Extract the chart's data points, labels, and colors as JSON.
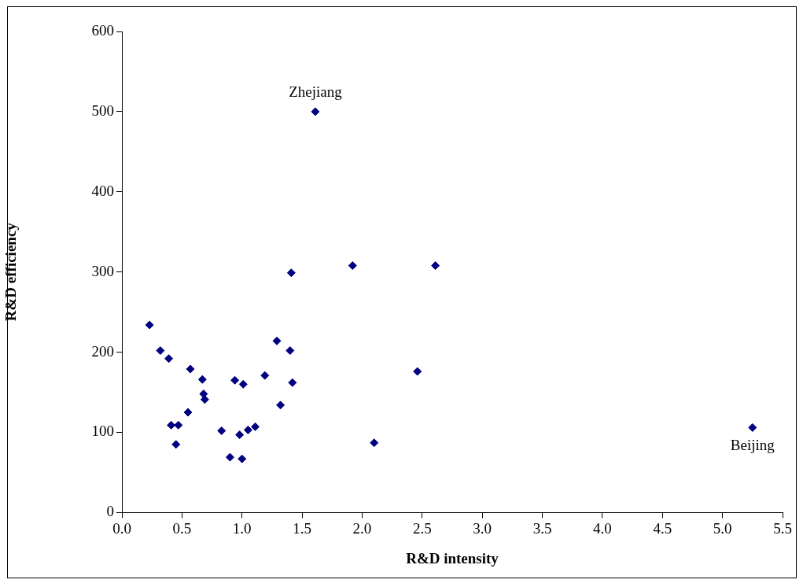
{
  "chart_data": {
    "type": "scatter",
    "xlabel": "R&D intensity",
    "ylabel": "R&D efficiency",
    "x": [
      0.23,
      0.32,
      0.39,
      0.57,
      0.67,
      0.68,
      0.69,
      0.55,
      0.41,
      0.47,
      0.45,
      0.83,
      0.9,
      1.0,
      0.98,
      1.05,
      1.11,
      0.94,
      1.01,
      1.19,
      1.29,
      1.4,
      1.42,
      1.32,
      1.61,
      1.41,
      1.92,
      2.61,
      2.46,
      2.1,
      5.25
    ],
    "values": [
      234,
      202,
      192,
      179,
      166,
      148,
      141,
      125,
      109,
      109,
      85,
      102,
      69,
      67,
      97,
      103,
      107,
      165,
      160,
      171,
      214,
      202,
      162,
      134,
      500,
      299,
      308,
      308,
      176,
      87,
      106
    ],
    "color": "#000080",
    "marker": "diamond",
    "grid": false,
    "legend": false,
    "xlim": [
      0,
      5.5
    ],
    "xticks": [
      {
        "value": 0,
        "label": "0.0"
      },
      {
        "value": 0.5,
        "label": "0.5"
      },
      {
        "value": 1,
        "label": "1.0"
      },
      {
        "value": 1.5,
        "label": "1.5"
      },
      {
        "value": 2,
        "label": "2.0"
      },
      {
        "value": 2.5,
        "label": "2.5"
      },
      {
        "value": 3,
        "label": "3.0"
      },
      {
        "value": 3.5,
        "label": "3.5"
      },
      {
        "value": 4,
        "label": "4.0"
      },
      {
        "value": 4.5,
        "label": "4.5"
      },
      {
        "value": 5,
        "label": "5.0"
      },
      {
        "value": 5.5,
        "label": "5.5"
      }
    ],
    "ylim": [
      0,
      600
    ],
    "yticks": [
      0,
      100,
      200,
      300,
      400,
      500,
      600
    ],
    "annotations": [
      {
        "text": "Zhejiang",
        "x": 1.61,
        "y": 500
      },
      {
        "text": "Beijing",
        "x": 5.25,
        "y": 106
      }
    ]
  }
}
